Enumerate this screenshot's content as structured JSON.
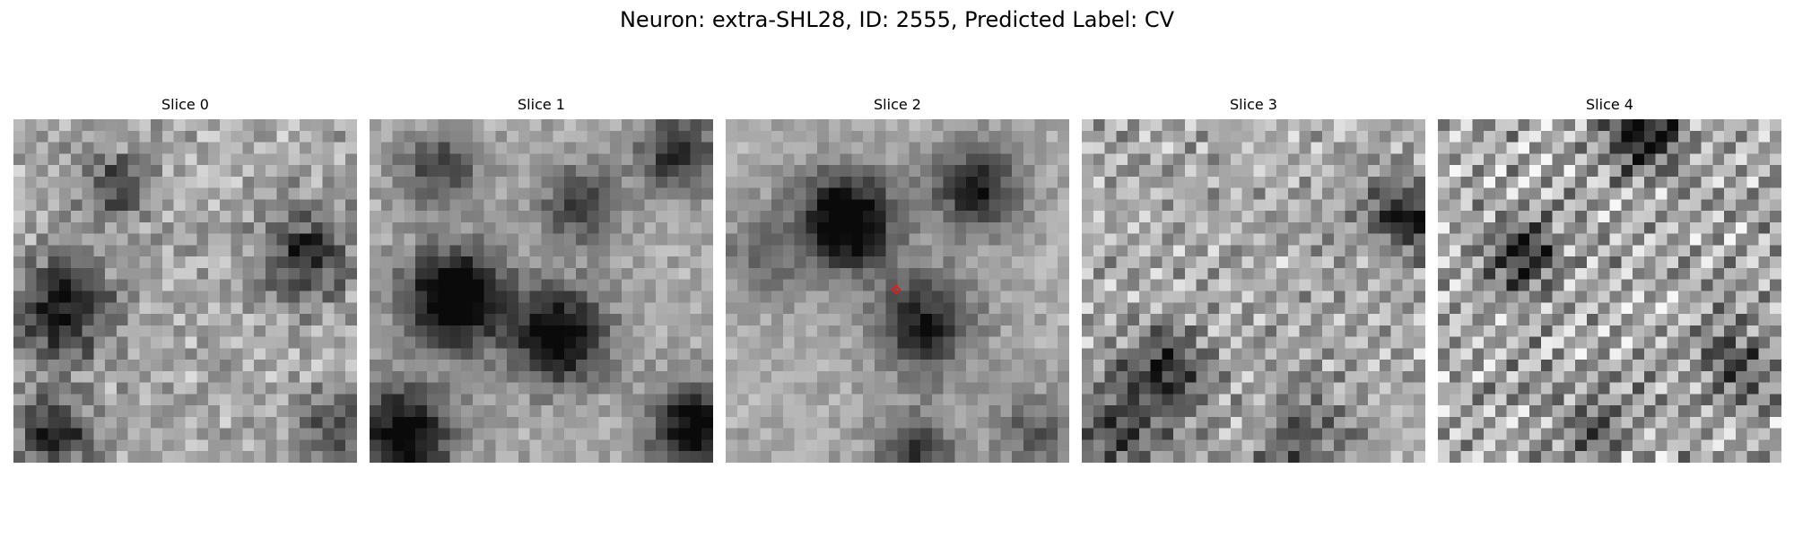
{
  "figure": {
    "title": "Neuron: extra-SHL28, ID: 2555, Predicted Label: CV",
    "marker_color": "#e41a1c",
    "panels": [
      {
        "title": "Slice 0",
        "blobs": [
          [
            0.15,
            0.55,
            0.1,
            0.6
          ],
          [
            0.3,
            0.2,
            0.07,
            0.4
          ],
          [
            0.85,
            0.4,
            0.09,
            0.5
          ],
          [
            0.12,
            0.92,
            0.08,
            0.5
          ],
          [
            0.95,
            0.9,
            0.08,
            0.4
          ]
        ],
        "noise": 0.32,
        "stripes": 0.05
      },
      {
        "title": "Slice 1",
        "blobs": [
          [
            0.25,
            0.52,
            0.1,
            0.85
          ],
          [
            0.55,
            0.63,
            0.1,
            0.7
          ],
          [
            0.62,
            0.25,
            0.08,
            0.45
          ],
          [
            0.1,
            0.92,
            0.1,
            0.7
          ],
          [
            0.95,
            0.9,
            0.09,
            0.7
          ],
          [
            0.9,
            0.1,
            0.08,
            0.5
          ],
          [
            0.2,
            0.15,
            0.08,
            0.4
          ]
        ],
        "noise": 0.22,
        "stripes": 0.02
      },
      {
        "title": "Slice 2",
        "blobs": [
          [
            0.35,
            0.3,
            0.1,
            0.8
          ],
          [
            0.73,
            0.2,
            0.09,
            0.55
          ],
          [
            0.58,
            0.6,
            0.1,
            0.55
          ],
          [
            0.1,
            0.4,
            0.08,
            0.25
          ],
          [
            0.55,
            0.98,
            0.08,
            0.45
          ],
          [
            0.9,
            0.92,
            0.08,
            0.3
          ]
        ],
        "noise": 0.2,
        "stripes": 0.02,
        "marker": true
      },
      {
        "title": "Slice 3",
        "blobs": [
          [
            0.25,
            0.73,
            0.08,
            0.5
          ],
          [
            0.95,
            0.28,
            0.08,
            0.55
          ],
          [
            0.1,
            0.9,
            0.1,
            0.4
          ],
          [
            0.65,
            0.95,
            0.1,
            0.3
          ]
        ],
        "noise": 0.3,
        "stripes": 0.12
      },
      {
        "title": "Slice 4",
        "blobs": [
          [
            0.6,
            0.05,
            0.07,
            0.7
          ],
          [
            0.25,
            0.4,
            0.07,
            0.5
          ],
          [
            0.85,
            0.7,
            0.08,
            0.35
          ],
          [
            0.45,
            0.9,
            0.08,
            0.3
          ]
        ],
        "noise": 0.3,
        "stripes": 0.22
      }
    ]
  }
}
